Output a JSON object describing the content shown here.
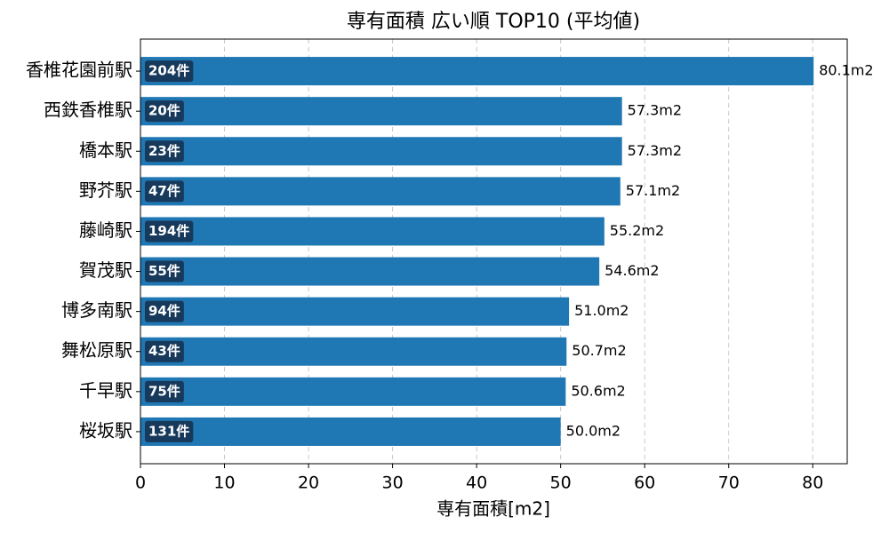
{
  "chart_data": {
    "type": "barh",
    "title": "専有面積 広い順 TOP10 (平均値)",
    "xlabel": "専有面積[m2]",
    "categories": [
      "香椎花園前駅",
      "西鉄香椎駅",
      "橋本駅",
      "野芥駅",
      "藤崎駅",
      "賀茂駅",
      "博多南駅",
      "舞松原駅",
      "千早駅",
      "桜坂駅"
    ],
    "values": [
      80.1,
      57.3,
      57.3,
      57.1,
      55.2,
      54.6,
      51.0,
      50.7,
      50.6,
      50.0
    ],
    "value_labels": [
      "80.1m2",
      "57.3m2",
      "57.3m2",
      "57.1m2",
      "55.2m2",
      "54.6m2",
      "51.0m2",
      "50.7m2",
      "50.6m2",
      "50.0m2"
    ],
    "count_labels": [
      "204件",
      "20件",
      "23件",
      "47件",
      "194件",
      "55件",
      "94件",
      "43件",
      "75件",
      "131件"
    ],
    "color": "#1f77b4",
    "badge_color": "#173a5c",
    "xlim": [
      0,
      84.1
    ],
    "xticks": [
      0,
      10,
      20,
      30,
      40,
      50,
      60,
      70,
      80
    ],
    "grid": true
  }
}
